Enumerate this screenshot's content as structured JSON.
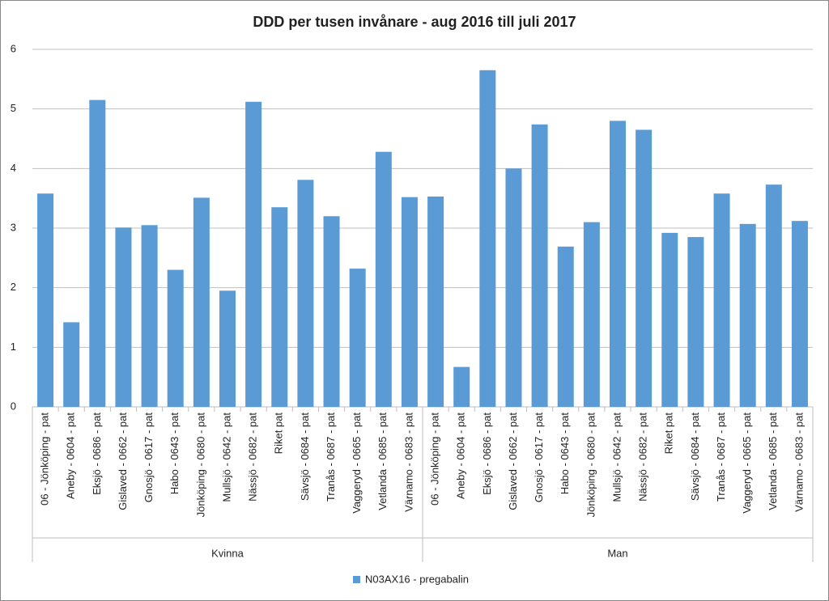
{
  "chart_data": {
    "type": "bar",
    "title": "DDD per tusen invånare - aug 2016 till juli 2017",
    "categories": [
      "06 - Jönköping - pat",
      "Aneby - 0604 - pat",
      "Eksjö - 0686 - pat",
      "Gislaved - 0662 - pat",
      "Gnosjö - 0617 - pat",
      "Habo - 0643 - pat",
      "Jönköping - 0680 - pat",
      "Mullsjö - 0642 - pat",
      "Nässjö - 0682 - pat",
      "Riket pat",
      "Sävsjö - 0684 - pat",
      "Tranås - 0687 - pat",
      "Vaggeryd - 0665 - pat",
      "Vetlanda - 0685 - pat",
      "Värnamo - 0683 - pat",
      "06 - Jönköping - pat",
      "Aneby - 0604 - pat",
      "Eksjö - 0686 - pat",
      "Gislaved - 0662 - pat",
      "Gnosjö - 0617 - pat",
      "Habo - 0643 - pat",
      "Jönköping - 0680 - pat",
      "Mullsjö - 0642 - pat",
      "Nässjö - 0682 - pat",
      "Riket pat",
      "Sävsjö - 0684 - pat",
      "Tranås - 0687 - pat",
      "Vaggeryd - 0665 - pat",
      "Vetlanda - 0685 - pat",
      "Värnamo - 0683 - pat"
    ],
    "groups": [
      "Kvinna",
      "Man"
    ],
    "series": [
      {
        "name": "N03AX16 - pregabalin",
        "color": "#5b9bd5",
        "values": [
          3.58,
          1.42,
          5.15,
          3.01,
          3.05,
          2.3,
          3.51,
          1.95,
          5.12,
          3.35,
          3.81,
          3.2,
          2.32,
          4.28,
          3.52,
          3.53,
          0.67,
          5.65,
          4.0,
          4.74,
          2.69,
          3.1,
          4.8,
          4.65,
          2.92,
          2.85,
          3.58,
          3.07,
          3.73,
          3.12
        ]
      }
    ],
    "ylim": [
      0,
      6
    ],
    "yticks": [
      0,
      1,
      2,
      3,
      4,
      5,
      6
    ],
    "grid": true,
    "legend": "bottom"
  }
}
